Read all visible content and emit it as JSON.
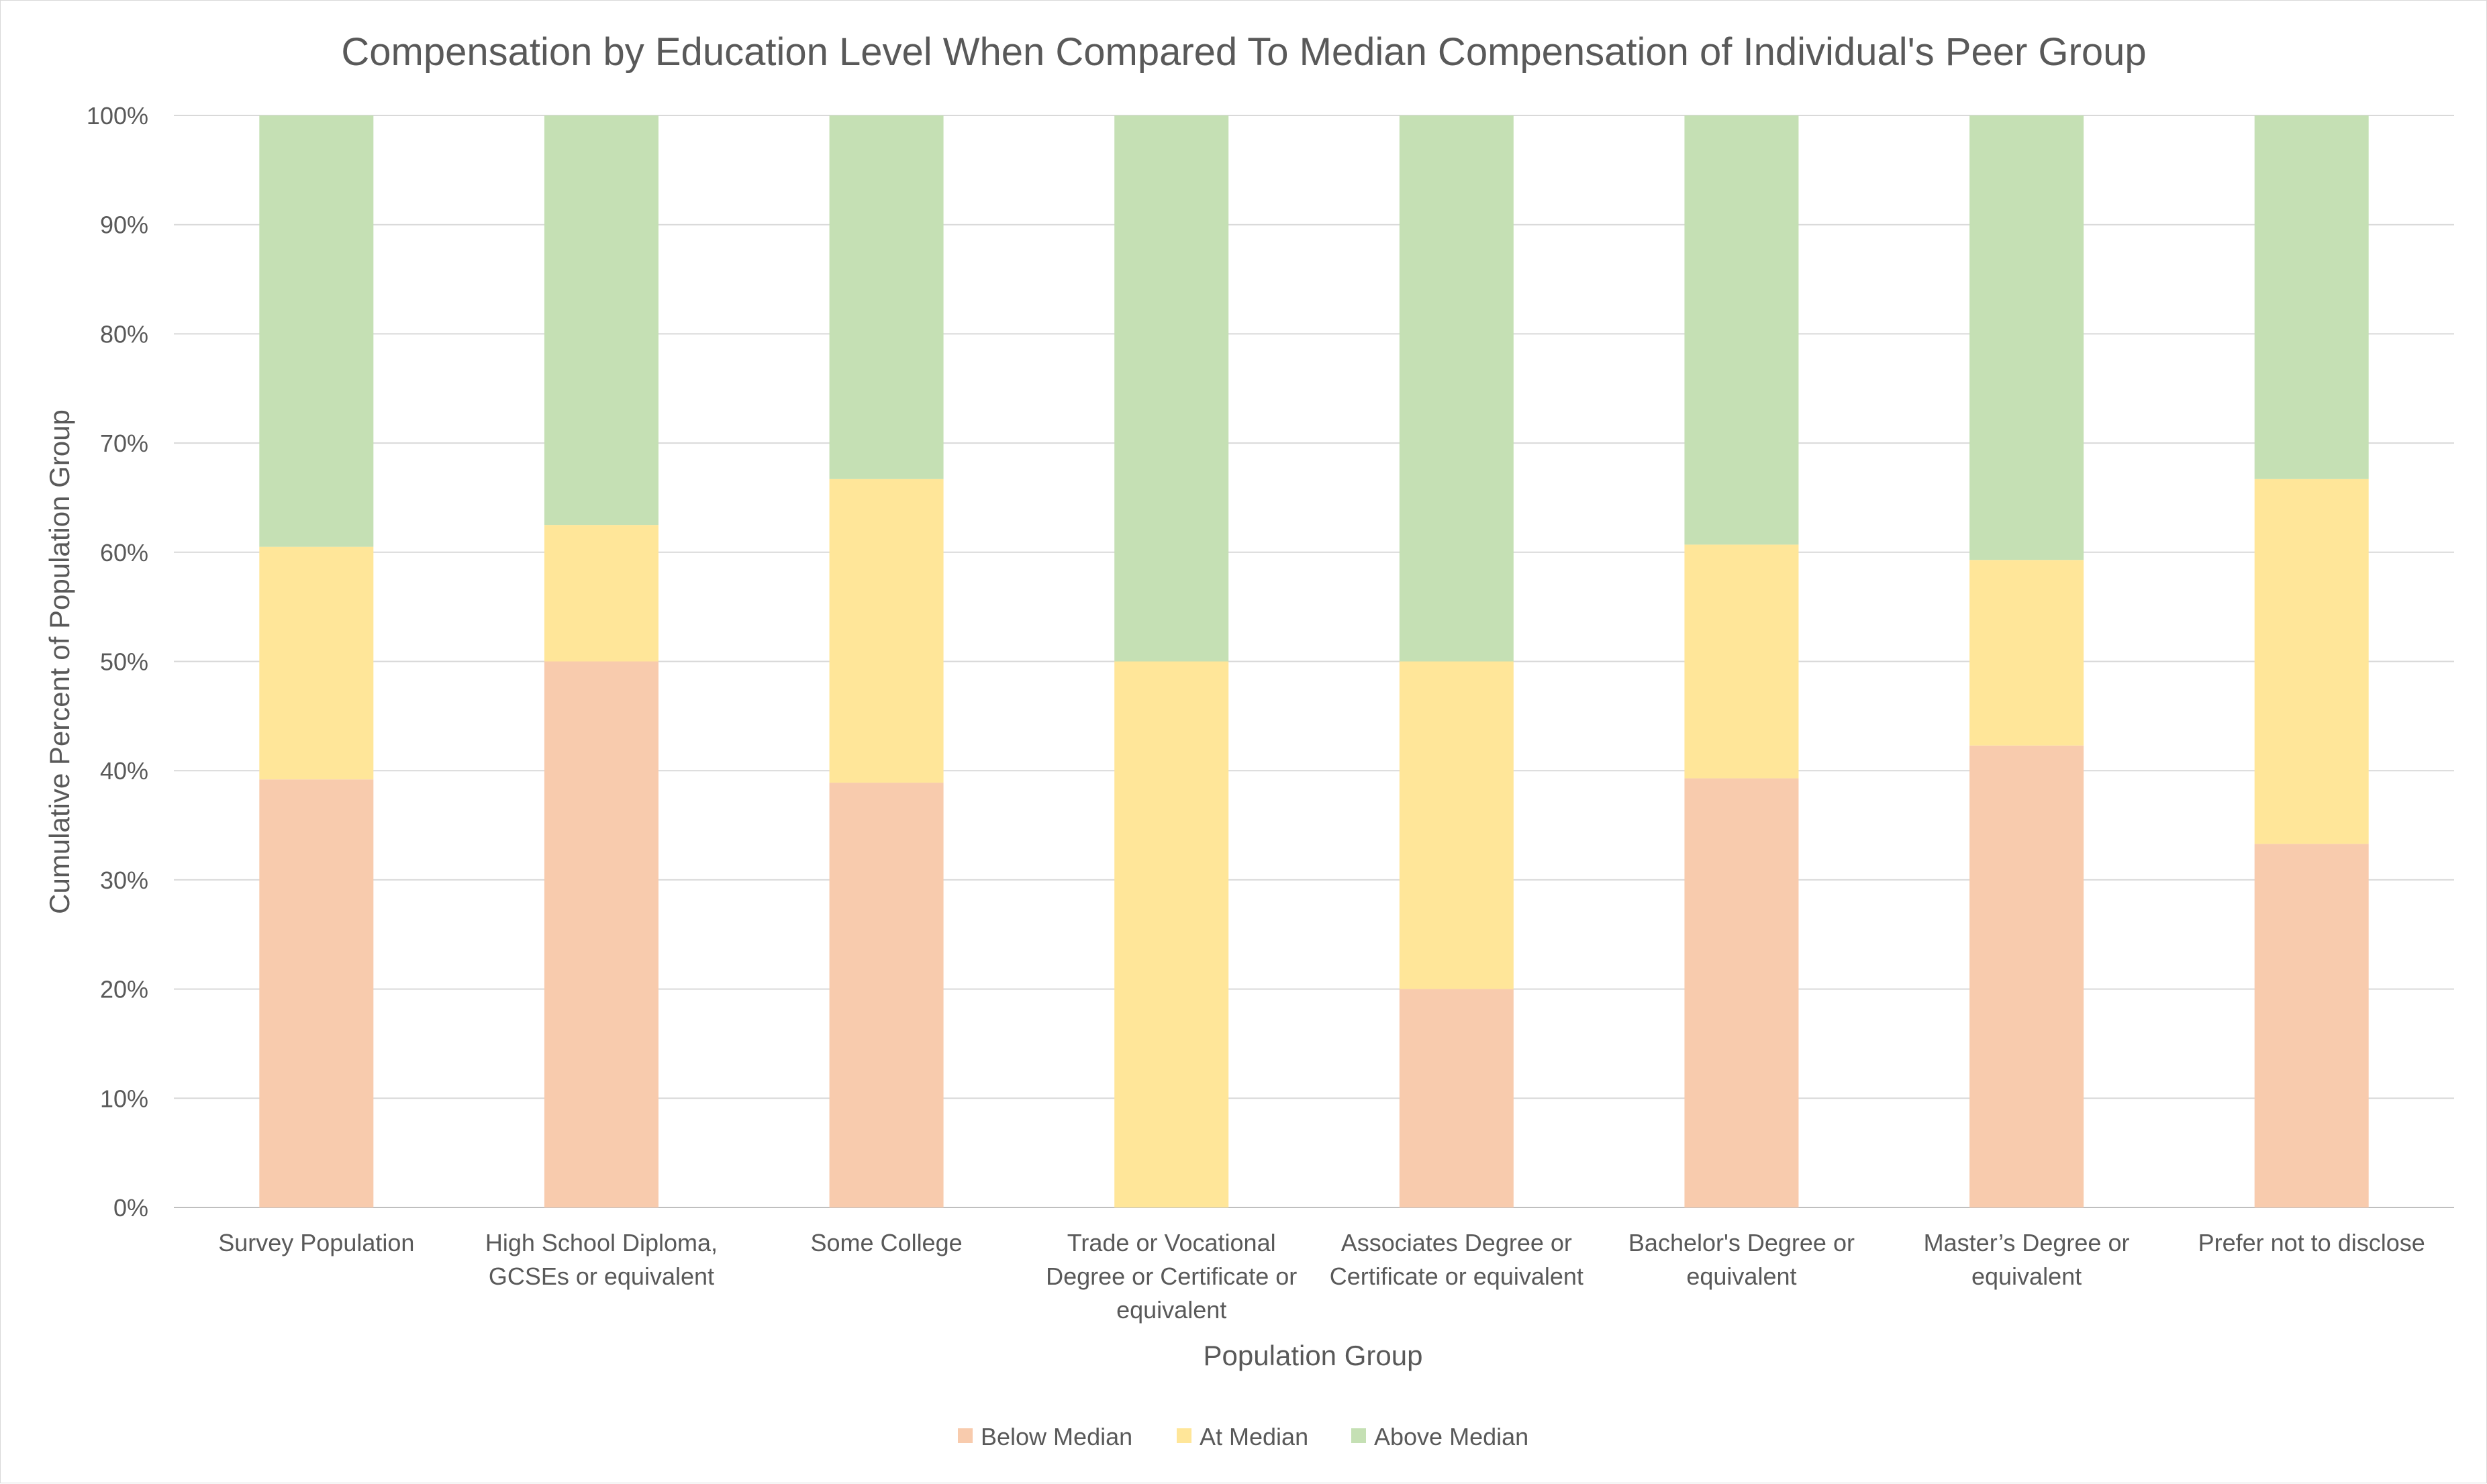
{
  "chart_data": {
    "type": "bar",
    "stacked": true,
    "title": "Compensation by Education Level When Compared To Median Compensation of Individual's Peer Group",
    "xlabel": "Population Group",
    "ylabel": "Cumulative Percent of Population Group",
    "ylim": [
      0,
      100
    ],
    "yticks": [
      "0%",
      "10%",
      "20%",
      "30%",
      "40%",
      "50%",
      "60%",
      "70%",
      "80%",
      "90%",
      "100%"
    ],
    "grid": true,
    "legend_position": "bottom",
    "categories": [
      "Survey Population",
      "High School Diploma, GCSEs or equivalent",
      "Some College",
      "Trade or Vocational Degree or Certificate or equivalent",
      "Associates Degree or Certificate or equivalent",
      "Bachelor's Degree or equivalent",
      "Master’s Degree or equivalent",
      "Prefer not to disclose"
    ],
    "category_lines": [
      [
        "Survey Population"
      ],
      [
        "High School Diploma,",
        "GCSEs or equivalent"
      ],
      [
        "Some College"
      ],
      [
        "Trade or Vocational",
        "Degree or Certificate or",
        "equivalent"
      ],
      [
        "Associates Degree or",
        "Certificate or equivalent"
      ],
      [
        "Bachelor's Degree or",
        "equivalent"
      ],
      [
        "Master’s Degree or",
        "equivalent"
      ],
      [
        "Prefer not to disclose"
      ]
    ],
    "series": [
      {
        "name": "Below Median",
        "color": "#f8cbad",
        "values": [
          39.2,
          50.0,
          38.9,
          0.0,
          20.0,
          39.3,
          42.3,
          33.3
        ]
      },
      {
        "name": "At Median",
        "color": "#ffe699",
        "values": [
          21.3,
          12.5,
          27.8,
          50.0,
          30.0,
          21.4,
          17.0,
          33.4
        ]
      },
      {
        "name": "Above Median",
        "color": "#c5e0b4",
        "values": [
          39.5,
          37.5,
          33.3,
          50.0,
          50.0,
          39.3,
          40.7,
          33.3
        ]
      }
    ]
  }
}
